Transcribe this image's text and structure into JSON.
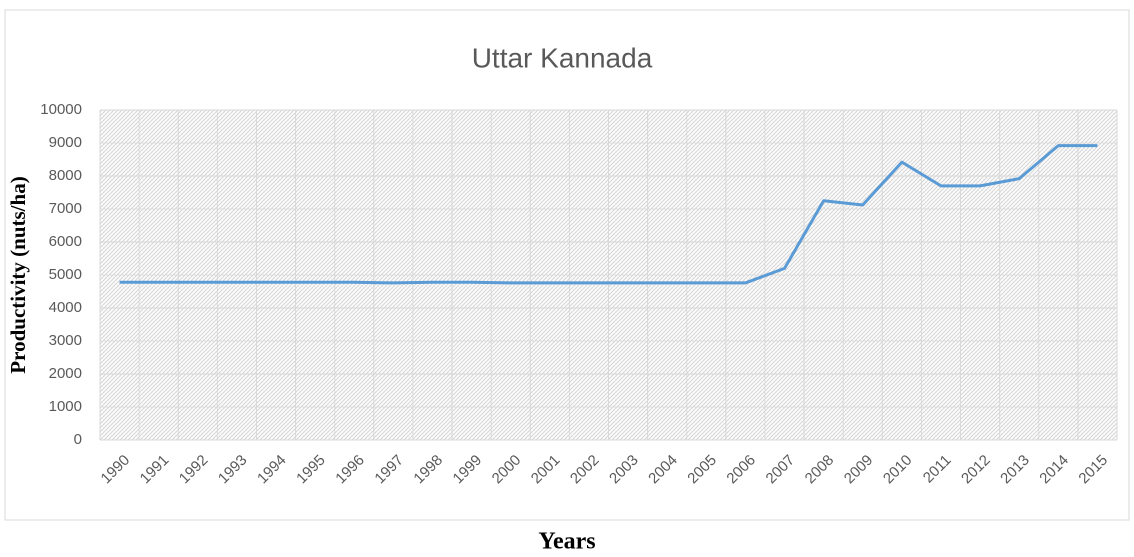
{
  "chart_data": {
    "type": "line",
    "title": "Uttar Kannada",
    "x_label": "Years",
    "y_label": "Productivity (nuts/ha)",
    "categories": [
      "1990",
      "1991",
      "1992",
      "1993",
      "1994",
      "1995",
      "1996",
      "1997",
      "1998",
      "1999",
      "2000",
      "2001",
      "2002",
      "2003",
      "2004",
      "2005",
      "2006",
      "2007",
      "2008",
      "2009",
      "2010",
      "2011",
      "2012",
      "2013",
      "2014",
      "2015"
    ],
    "series": [
      {
        "name": "Uttar Kannada",
        "color": "#5b9bd5",
        "values": [
          4780,
          4780,
          4780,
          4780,
          4780,
          4780,
          4780,
          4760,
          4780,
          4780,
          4760,
          4760,
          4760,
          4760,
          4760,
          4760,
          4760,
          5200,
          7250,
          7120,
          8420,
          7700,
          7700,
          7920,
          8920,
          8920
        ]
      }
    ],
    "ylim": [
      0,
      10000
    ],
    "yticks": [
      0,
      1000,
      2000,
      3000,
      4000,
      5000,
      6000,
      7000,
      8000,
      9000,
      10000
    ],
    "grid": true
  }
}
